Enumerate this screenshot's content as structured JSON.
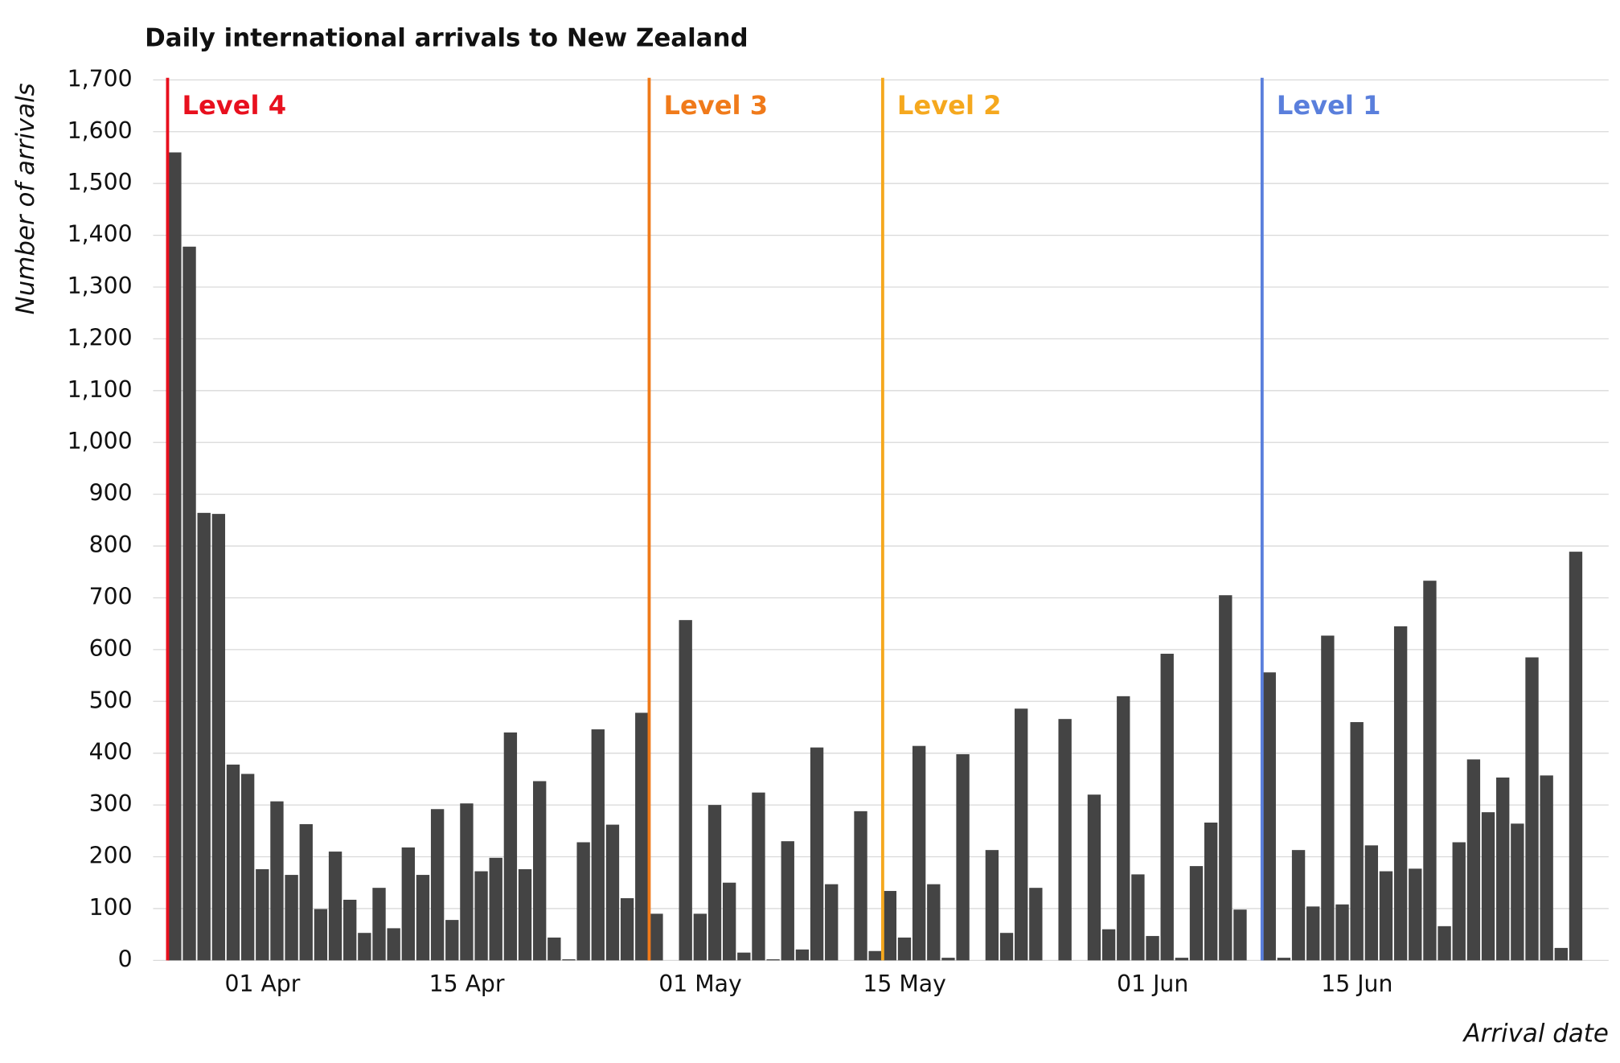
{
  "chart_data": {
    "type": "bar",
    "title": "Daily international arrivals to New Zealand",
    "x_label": "Arrival date",
    "y_label": "Number of arrivals",
    "categories": [
      null,
      null,
      null,
      null,
      null,
      null,
      "01 Apr",
      null,
      null,
      null,
      null,
      null,
      null,
      null,
      null,
      null,
      null,
      null,
      null,
      null,
      "15 Apr",
      null,
      null,
      null,
      null,
      null,
      null,
      null,
      null,
      null,
      null,
      null,
      null,
      null,
      null,
      null,
      "01 May",
      null,
      null,
      null,
      null,
      null,
      null,
      null,
      null,
      null,
      null,
      null,
      null,
      null,
      "15 May",
      null,
      null,
      null,
      null,
      null,
      null,
      null,
      null,
      null,
      null,
      null,
      null,
      null,
      null,
      null,
      null,
      "01 Jun",
      null,
      null,
      null,
      null,
      null,
      null,
      null,
      null,
      null,
      null,
      null,
      null,
      null,
      "15 Jun",
      null,
      null,
      null,
      null,
      null,
      null,
      null,
      null,
      null,
      null,
      null,
      null,
      null,
      null,
      null
    ],
    "values": [
      1560,
      1378,
      864,
      862,
      378,
      360,
      176,
      307,
      165,
      263,
      99,
      210,
      117,
      53,
      140,
      62,
      218,
      165,
      292,
      78,
      303,
      172,
      198,
      440,
      176,
      346,
      44,
      2,
      228,
      446,
      262,
      120,
      478,
      90,
      0,
      657,
      90,
      300,
      150,
      15,
      324,
      2,
      230,
      21,
      411,
      147,
      0,
      288,
      18,
      134,
      44,
      414,
      147,
      5,
      398,
      0,
      213,
      53,
      486,
      140,
      0,
      466,
      0,
      320,
      60,
      510,
      166,
      47,
      592,
      5,
      182,
      266,
      705,
      98,
      0,
      556,
      5,
      213,
      104,
      627,
      108,
      460,
      222,
      172,
      645,
      177,
      733,
      66,
      228,
      388,
      286,
      353,
      264,
      585,
      357,
      24,
      789
    ],
    "color": "#444444",
    "ylim": [
      0,
      1700
    ],
    "yticks": [
      0,
      100,
      200,
      300,
      400,
      500,
      600,
      700,
      800,
      900,
      {
        "value": 1000,
        "label": "1,000"
      },
      {
        "value": 1100,
        "label": "1,100"
      },
      {
        "value": 1200,
        "label": "1,200"
      },
      {
        "value": 1300,
        "label": "1,300"
      },
      {
        "value": 1400,
        "label": "1,400"
      },
      {
        "value": 1500,
        "label": "1,500"
      },
      {
        "value": 1600,
        "label": "1,600"
      },
      {
        "value": 1700,
        "label": "1,700"
      }
    ],
    "grid": true,
    "annotations": [
      {
        "text": "Level 4",
        "color": "#e8101e",
        "x": -0.5
      },
      {
        "text": "Level 3",
        "color": "#f07a1a",
        "x": 32.5
      },
      {
        "text": "Level 2",
        "color": "#f5a81e",
        "x": 48.5
      },
      {
        "text": "Level 1",
        "color": "#5a7fdc",
        "x": 74.5
      }
    ]
  }
}
